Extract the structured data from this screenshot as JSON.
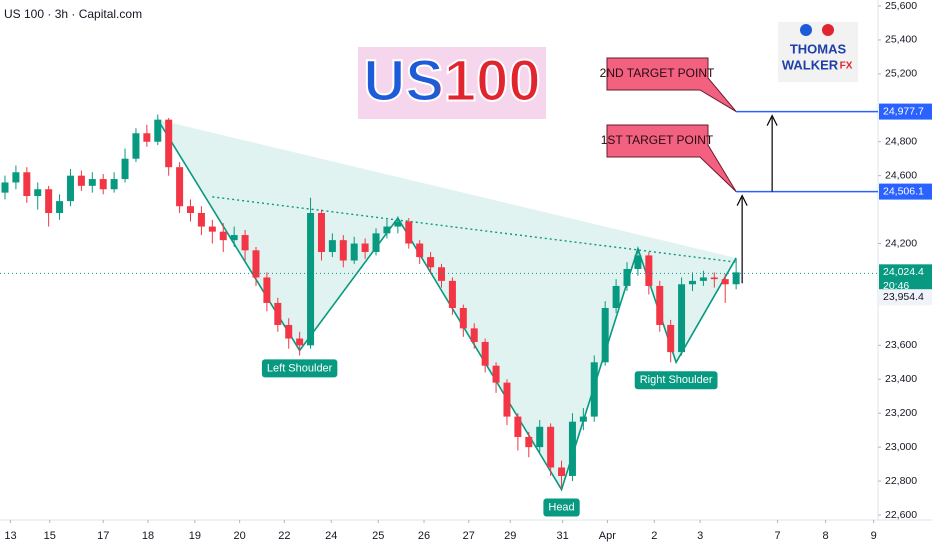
{
  "chart_data": {
    "type": "candlestick",
    "title": "US 100 · 3h · Capital.com",
    "logo": "US100",
    "brand": [
      "THOMAS",
      "WALKER",
      "FX"
    ],
    "up_color": "#089981",
    "down_color": "#f23645",
    "xlim": [
      0,
      80
    ],
    "xticks": [
      {
        "value": 0.5,
        "label": "13"
      },
      {
        "value": 4.1,
        "label": "15"
      },
      {
        "value": 9.0,
        "label": "17"
      },
      {
        "value": 13.1,
        "label": "18"
      },
      {
        "value": 17.4,
        "label": "19"
      },
      {
        "value": 21.5,
        "label": "20"
      },
      {
        "value": 25.6,
        "label": "22"
      },
      {
        "value": 29.9,
        "label": "24"
      },
      {
        "value": 34.2,
        "label": "25"
      },
      {
        "value": 38.4,
        "label": "26"
      },
      {
        "value": 42.5,
        "label": "27"
      },
      {
        "value": 46.3,
        "label": "29"
      },
      {
        "value": 51.1,
        "label": "31"
      },
      {
        "value": 55.2,
        "label": "Apr"
      },
      {
        "value": 59.5,
        "label": "2"
      },
      {
        "value": 63.7,
        "label": "3"
      },
      {
        "value": 70.8,
        "label": "7"
      },
      {
        "value": 75.2,
        "label": "8"
      },
      {
        "value": 79.6,
        "label": "9"
      }
    ],
    "ylim": [
      22600,
      25600
    ],
    "yticks": [
      {
        "value": 25600,
        "label": "25,600"
      },
      {
        "value": 25400,
        "label": "25,400"
      },
      {
        "value": 25200,
        "label": "25,200"
      },
      {
        "value": 24800,
        "label": "24,800"
      },
      {
        "value": 24600,
        "label": "24,600"
      },
      {
        "value": 24200,
        "label": "24,200"
      },
      {
        "value": 23600,
        "label": "23,600"
      },
      {
        "value": 23400,
        "label": "23,400"
      },
      {
        "value": 23200,
        "label": "23,200"
      },
      {
        "value": 23000,
        "label": "23,000"
      },
      {
        "value": 22800,
        "label": "22,800"
      },
      {
        "value": 22600,
        "label": "22,600"
      }
    ],
    "x": [
      0,
      1,
      2,
      3,
      4,
      5,
      6,
      7,
      8,
      9,
      10,
      11,
      12,
      13,
      14,
      15,
      16,
      17,
      18,
      19,
      20,
      21,
      22,
      23,
      24,
      25,
      26,
      27,
      28,
      29,
      30,
      31,
      32,
      33,
      34,
      35,
      36,
      37,
      38,
      39,
      40,
      41,
      42,
      43,
      44,
      45,
      46,
      47,
      48,
      49,
      50,
      51,
      52,
      53,
      54,
      55,
      56,
      57,
      58,
      59,
      60,
      61,
      62,
      63,
      64,
      65,
      66,
      67
    ],
    "open": [
      24500,
      24560,
      24620,
      24480,
      24520,
      24380,
      24450,
      24600,
      24540,
      24580,
      24520,
      24580,
      24700,
      24850,
      24800,
      24930,
      24650,
      24420,
      24380,
      24300,
      24270,
      24220,
      24250,
      24160,
      24000,
      23850,
      23720,
      23640,
      23600,
      24380,
      24150,
      24220,
      24100,
      24200,
      24150,
      24260,
      24300,
      24330,
      24200,
      24120,
      24060,
      23980,
      23820,
      23700,
      23620,
      23480,
      23380,
      23180,
      23060,
      23000,
      23120,
      22880,
      22830,
      23150,
      23180,
      23500,
      23820,
      23950,
      24050,
      24130,
      23950,
      23720,
      23560,
      23960,
      23980,
      24000,
      23990,
      23960
    ],
    "high": [
      24600,
      24660,
      24650,
      24560,
      24540,
      24490,
      24640,
      24630,
      24620,
      24610,
      24620,
      24760,
      24880,
      24900,
      24960,
      24940,
      24680,
      24460,
      24420,
      24340,
      24320,
      24300,
      24280,
      24180,
      24030,
      23880,
      23760,
      23680,
      24470,
      24400,
      24260,
      24250,
      24240,
      24230,
      24290,
      24340,
      24360,
      24350,
      24220,
      24150,
      24080,
      24000,
      23840,
      23730,
      23640,
      23500,
      23400,
      23200,
      23090,
      23160,
      23140,
      22920,
      23200,
      23230,
      23540,
      23860,
      23990,
      24090,
      24160,
      24150,
      23980,
      23750,
      24000,
      24030,
      24040,
      24030,
      24020,
      24110
    ],
    "low": [
      24460,
      24520,
      24440,
      24400,
      24300,
      24340,
      24420,
      24510,
      24500,
      24490,
      24500,
      24560,
      24680,
      24770,
      24780,
      24600,
      24380,
      24330,
      24250,
      24200,
      24150,
      24180,
      24100,
      23950,
      23800,
      23680,
      23580,
      23540,
      23580,
      24100,
      24120,
      24060,
      24080,
      24110,
      24130,
      24230,
      24260,
      24170,
      24080,
      24020,
      23940,
      23780,
      23650,
      23580,
      23440,
      23320,
      23130,
      22980,
      22940,
      22970,
      22830,
      22760,
      22800,
      23100,
      23150,
      23480,
      23790,
      23920,
      24010,
      23900,
      23680,
      23500,
      23540,
      23920,
      23950,
      23940,
      23850,
      23930
    ],
    "close": [
      24560,
      24620,
      24480,
      24520,
      24380,
      24450,
      24600,
      24540,
      24580,
      24520,
      24580,
      24700,
      24850,
      24800,
      24930,
      24650,
      24420,
      24380,
      24300,
      24270,
      24220,
      24250,
      24160,
      24000,
      23850,
      23720,
      23640,
      23600,
      24380,
      24150,
      24220,
      24100,
      24200,
      24150,
      24260,
      24300,
      24330,
      24200,
      24120,
      24060,
      23980,
      23820,
      23700,
      23620,
      23480,
      23380,
      23180,
      23060,
      23000,
      23120,
      22880,
      22830,
      23150,
      23180,
      23500,
      23820,
      23950,
      24050,
      24130,
      23950,
      23720,
      23560,
      23960,
      23980,
      24000,
      23990,
      23960,
      24030
    ],
    "pattern": {
      "color": "#089981",
      "x": [
        14,
        27,
        36,
        51,
        58,
        61.5,
        67
      ],
      "y": [
        24930,
        23570,
        24350,
        22750,
        24170,
        23500,
        24115
      ]
    },
    "pattern_labels": [
      "Left Shoulder",
      "Head",
      "Right Shoulder"
    ],
    "neckline": {
      "x": [
        19,
        67
      ],
      "y": [
        24475,
        24090
      ]
    },
    "targets": [
      {
        "label": "1ST TARGET POINT",
        "value": 24506.1,
        "value_label": "24,506.1"
      },
      {
        "label": "2ND TARGET POINT",
        "value": 24977.7,
        "value_label": "24,977.7"
      }
    ],
    "last_price": {
      "value": 24024.4,
      "label": "24,024.4",
      "countdown": "20:46"
    },
    "bid_price": {
      "value": 23954.4,
      "label": "23,954.4"
    }
  }
}
